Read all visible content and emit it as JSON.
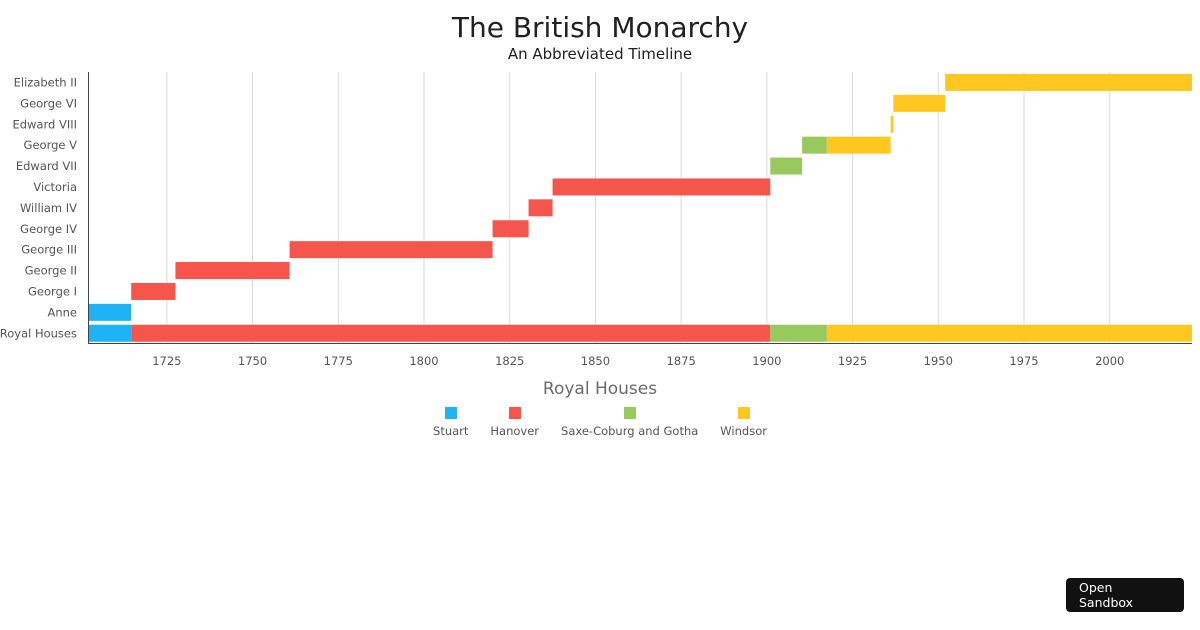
{
  "chart_data": {
    "type": "timeline",
    "title": "The British Monarchy",
    "subtitle": "An Abbreviated Timeline",
    "xlim": [
      1702,
      2024
    ],
    "x_ticks": [
      1725,
      1750,
      1775,
      1800,
      1825,
      1850,
      1875,
      1900,
      1925,
      1950,
      1975,
      2000
    ],
    "grid": true,
    "legend_title": "Royal Houses",
    "legend_position": "bottom-center",
    "legend": [
      {
        "name": "Stuart",
        "color": "#1eb3f5"
      },
      {
        "name": "Hanover",
        "color": "#f5554a"
      },
      {
        "name": "Saxe-Coburg and Gotha",
        "color": "#97c95c"
      },
      {
        "name": "Windsor",
        "color": "#ffc720"
      }
    ],
    "rows": [
      {
        "label": "Elizabeth II",
        "segments": [
          {
            "house": "Windsor",
            "start": 1952,
            "end": 2024
          }
        ]
      },
      {
        "label": "George VI",
        "segments": [
          {
            "house": "Windsor",
            "start": 1936.9,
            "end": 1952
          }
        ]
      },
      {
        "label": "Edward VIII",
        "segments": [
          {
            "house": "Windsor",
            "start": 1936.1,
            "end": 1936.9
          }
        ]
      },
      {
        "label": "George V",
        "segments": [
          {
            "house": "Saxe-Coburg and Gotha",
            "start": 1910.3,
            "end": 1917.5
          },
          {
            "house": "Windsor",
            "start": 1917.5,
            "end": 1936.1
          }
        ]
      },
      {
        "label": "Edward VII",
        "segments": [
          {
            "house": "Saxe-Coburg and Gotha",
            "start": 1901,
            "end": 1910.3
          }
        ]
      },
      {
        "label": "Victoria",
        "segments": [
          {
            "house": "Hanover",
            "start": 1837.5,
            "end": 1901
          }
        ]
      },
      {
        "label": "William IV",
        "segments": [
          {
            "house": "Hanover",
            "start": 1830.5,
            "end": 1837.5
          }
        ]
      },
      {
        "label": "George IV",
        "segments": [
          {
            "house": "Hanover",
            "start": 1820,
            "end": 1830.5
          }
        ]
      },
      {
        "label": "George III",
        "segments": [
          {
            "house": "Hanover",
            "start": 1760.8,
            "end": 1820
          }
        ]
      },
      {
        "label": "George II",
        "segments": [
          {
            "house": "Hanover",
            "start": 1727.5,
            "end": 1760.8
          }
        ]
      },
      {
        "label": "George I",
        "segments": [
          {
            "house": "Hanover",
            "start": 1714.6,
            "end": 1727.5
          }
        ]
      },
      {
        "label": "Anne",
        "segments": [
          {
            "house": "Stuart",
            "start": 1702,
            "end": 1714.6
          }
        ]
      },
      {
        "label": "Royal Houses",
        "segments": [
          {
            "house": "Stuart",
            "start": 1702,
            "end": 1714.6
          },
          {
            "house": "Hanover",
            "start": 1714.6,
            "end": 1901
          },
          {
            "house": "Saxe-Coburg and Gotha",
            "start": 1901,
            "end": 1917.5
          },
          {
            "house": "Windsor",
            "start": 1917.5,
            "end": 2024
          }
        ]
      }
    ]
  },
  "sandbox_button": {
    "label": "Open Sandbox"
  }
}
